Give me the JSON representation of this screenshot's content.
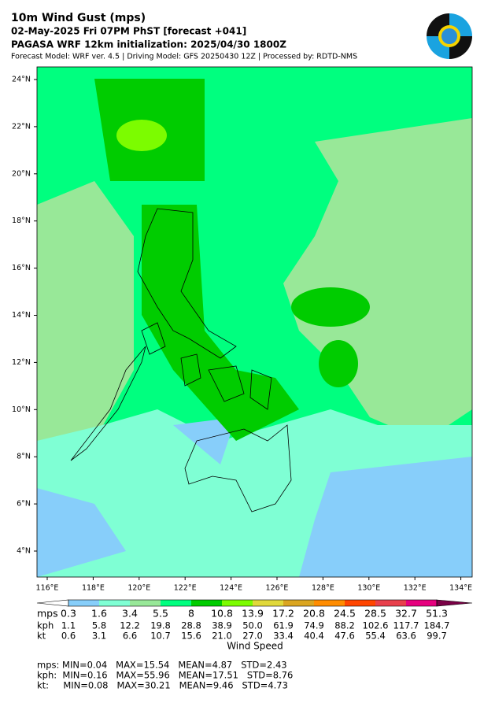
{
  "header": {
    "title": "10m Wind Gust (mps)",
    "subtitle": "02-May-2025 Fri 07PM PhST [forecast +041]",
    "initialization": "PAGASA WRF 12km initialization: 2025/04/30 1800Z",
    "model": "Forecast Model: WRF ver. 4.5 | Driving Model: GFS 20250430 12Z | Processed by: RDTD-NMS"
  },
  "map": {
    "lon_ticks": [
      "116°E",
      "118°E",
      "120°E",
      "122°E",
      "124°E",
      "126°E",
      "128°E",
      "130°E",
      "132°E",
      "134°E"
    ],
    "lat_ticks": [
      "24°N",
      "22°N",
      "20°N",
      "18°N",
      "16°N",
      "14°N",
      "12°N",
      "10°N",
      "8°N",
      "6°N",
      "4°N"
    ]
  },
  "legend": {
    "title": "Wind Speed",
    "colors": [
      "#ffffff",
      "#87cefa",
      "#7fffd4",
      "#98e898",
      "#00ff7f",
      "#00cc00",
      "#7cfc00",
      "#e0d83a",
      "#daa520",
      "#ff8c00",
      "#ff4500",
      "#e8404c",
      "#e6007e",
      "#7a0046"
    ],
    "rows": [
      {
        "unit": "mps",
        "values": [
          "0.3",
          "1.6",
          "3.4",
          "5.5",
          "8",
          "10.8",
          "13.9",
          "17.2",
          "20.8",
          "24.5",
          "28.5",
          "32.7",
          "51.3"
        ]
      },
      {
        "unit": "kph",
        "values": [
          "1.1",
          "5.8",
          "12.2",
          "19.8",
          "28.8",
          "38.9",
          "50.0",
          "61.9",
          "74.9",
          "88.2",
          "102.6",
          "117.7",
          "184.7"
        ]
      },
      {
        "unit": "kt",
        "values": [
          "0.6",
          "3.1",
          "6.6",
          "10.7",
          "15.6",
          "21.0",
          "27.0",
          "33.4",
          "40.4",
          "47.6",
          "55.4",
          "63.6",
          "99.7"
        ]
      }
    ]
  },
  "stats": [
    "mps: MIN=0.04   MAX=15.54   MEAN=4.87   STD=2.43",
    "kph:  MIN=0.16   MAX=55.96   MEAN=17.51   STD=8.76",
    "kt:     MIN=0.08   MAX=30.21   MEAN=9.46   STD=4.73"
  ]
}
